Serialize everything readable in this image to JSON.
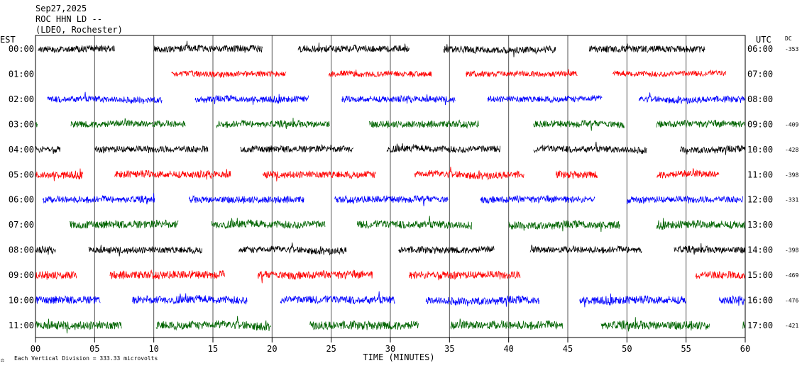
{
  "header": {
    "date": "Sep27,2025",
    "station": "ROC HHN LD --",
    "network": "(LDEO, Rochester)"
  },
  "left_axis_title": "EST",
  "right_axis_title": "UTC",
  "dc_title": "DC",
  "footer": {
    "scale_note": "Each Vertical Division =  333.33 microvolts",
    "scale_mark": "⚖"
  },
  "chart_data": {
    "type": "line",
    "title": "",
    "xlabel": "TIME (MINUTES)",
    "ylabel": "",
    "xlim": [
      0,
      60
    ],
    "x_ticks": [
      "00",
      "05",
      "10",
      "15",
      "20",
      "25",
      "30",
      "35",
      "40",
      "45",
      "50",
      "55",
      "60"
    ],
    "grid": true,
    "colors": [
      "#000000",
      "#ff0000",
      "#0000ff",
      "#006400"
    ],
    "rows": [
      {
        "est": "00:00",
        "utc": "06:00",
        "dc": "-353",
        "color": "#000000",
        "segments": [
          [
            0.2,
            6.7
          ],
          [
            10.0,
            19.2
          ],
          [
            22.2,
            31.6
          ],
          [
            34.5,
            44.0
          ],
          [
            46.8,
            56.6
          ]
        ],
        "amp": 0.3
      },
      {
        "est": "01:00",
        "utc": "07:00",
        "dc": "",
        "color": "#ff0000",
        "segments": [
          [
            11.5,
            21.2
          ],
          [
            24.8,
            33.5
          ],
          [
            36.4,
            45.8
          ],
          [
            48.8,
            58.4
          ]
        ],
        "amp": 0.25
      },
      {
        "est": "02:00",
        "utc": "08:00",
        "dc": "",
        "color": "#0000ff",
        "segments": [
          [
            1.0,
            10.7
          ],
          [
            13.5,
            23.1
          ],
          [
            25.9,
            35.5
          ],
          [
            38.2,
            47.9
          ],
          [
            51.0,
            60.0
          ]
        ],
        "amp": 0.28
      },
      {
        "est": "03:00",
        "utc": "09:00",
        "dc": "-409",
        "color": "#006400",
        "segments": [
          [
            0.0,
            0.2
          ],
          [
            3.0,
            12.7
          ],
          [
            15.3,
            24.9
          ],
          [
            28.2,
            37.5
          ],
          [
            42.1,
            49.8
          ],
          [
            52.5,
            60.0
          ]
        ],
        "amp": 0.3
      },
      {
        "est": "04:00",
        "utc": "10:00",
        "dc": "-428",
        "color": "#000000",
        "segments": [
          [
            0.0,
            2.1
          ],
          [
            5.0,
            14.6
          ],
          [
            17.3,
            26.9
          ],
          [
            29.7,
            39.3
          ],
          [
            42.1,
            51.7
          ],
          [
            54.5,
            60.0
          ]
        ],
        "amp": 0.3
      },
      {
        "est": "05:00",
        "utc": "11:00",
        "dc": "-398",
        "color": "#ff0000",
        "segments": [
          [
            0.0,
            4.0
          ],
          [
            6.7,
            16.5
          ],
          [
            19.2,
            28.8
          ],
          [
            32.0,
            41.3
          ],
          [
            44.0,
            47.5
          ],
          [
            52.5,
            57.8
          ]
        ],
        "amp": 0.32
      },
      {
        "est": "06:00",
        "utc": "12:00",
        "dc": "-331",
        "color": "#0000ff",
        "segments": [
          [
            0.6,
            10.1
          ],
          [
            13.0,
            22.7
          ],
          [
            25.3,
            34.9
          ],
          [
            37.6,
            47.3
          ],
          [
            50.0,
            59.8
          ]
        ],
        "amp": 0.3
      },
      {
        "est": "07:00",
        "utc": "13:00",
        "dc": "",
        "color": "#006400",
        "segments": [
          [
            2.9,
            12.1
          ],
          [
            14.9,
            24.5
          ],
          [
            27.2,
            36.9
          ],
          [
            40.0,
            49.4
          ],
          [
            52.5,
            60.0
          ]
        ],
        "amp": 0.35
      },
      {
        "est": "08:00",
        "utc": "14:00",
        "dc": "-398",
        "color": "#000000",
        "segments": [
          [
            0.0,
            1.7
          ],
          [
            4.5,
            14.1
          ],
          [
            17.2,
            26.3
          ],
          [
            30.7,
            38.8
          ],
          [
            41.8,
            51.3
          ],
          [
            54.0,
            60.0
          ]
        ],
        "amp": 0.3
      },
      {
        "est": "09:00",
        "utc": "15:00",
        "dc": "-469",
        "color": "#ff0000",
        "segments": [
          [
            0.0,
            3.5
          ],
          [
            6.3,
            16.0
          ],
          [
            18.8,
            28.5
          ],
          [
            31.6,
            41.0
          ],
          [
            55.8,
            60.0
          ]
        ],
        "amp": 0.35
      },
      {
        "est": "10:00",
        "utc": "16:00",
        "dc": "-476",
        "color": "#0000ff",
        "segments": [
          [
            0.0,
            5.5
          ],
          [
            8.2,
            17.9
          ],
          [
            20.7,
            30.4
          ],
          [
            33.0,
            42.6
          ],
          [
            46.0,
            55.0
          ],
          [
            57.8,
            60.0
          ]
        ],
        "amp": 0.35
      },
      {
        "est": "11:00",
        "utc": "17:00",
        "dc": "-421",
        "color": "#006400",
        "segments": [
          [
            0.0,
            7.3
          ],
          [
            10.2,
            19.9
          ],
          [
            23.2,
            32.4
          ],
          [
            35.1,
            44.6
          ],
          [
            47.8,
            57.0
          ],
          [
            59.8,
            60.0
          ]
        ],
        "amp": 0.38
      }
    ]
  }
}
